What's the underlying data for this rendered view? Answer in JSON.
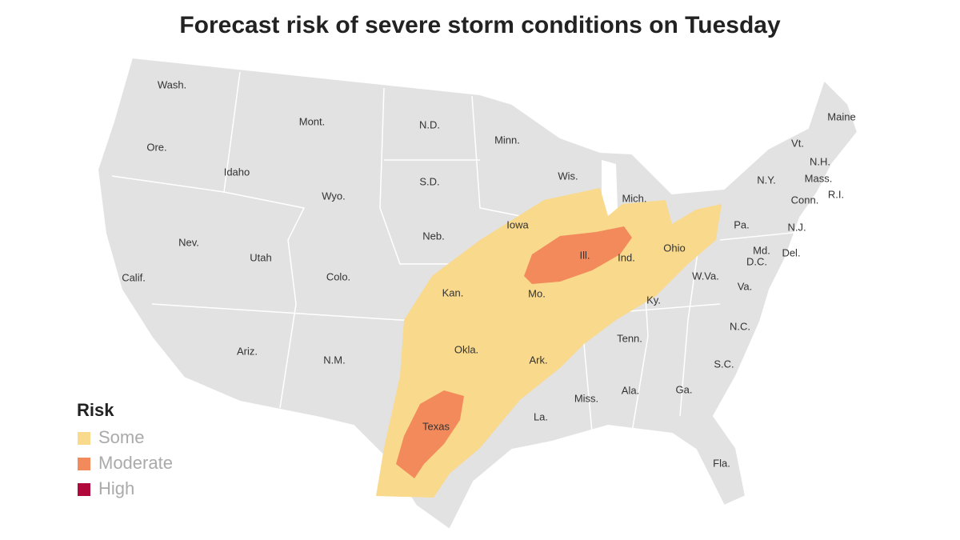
{
  "title": "Forecast risk of severe storm conditions on Tuesday",
  "legend": {
    "title": "Risk",
    "items": [
      {
        "label": "Some",
        "color": "#f9d98b"
      },
      {
        "label": "Moderate",
        "color": "#f28a5c"
      },
      {
        "label": "High",
        "color": "#b0083a"
      }
    ]
  },
  "states": [
    "Wash.",
    "Ore.",
    "Calif.",
    "Idaho",
    "Nev.",
    "Mont.",
    "Wyo.",
    "Utah",
    "Ariz.",
    "Colo.",
    "N.M.",
    "N.D.",
    "S.D.",
    "Neb.",
    "Kan.",
    "Okla.",
    "Texas",
    "Minn.",
    "Iowa",
    "Mo.",
    "Ark.",
    "La.",
    "Wis.",
    "Ill.",
    "Mich.",
    "Ind.",
    "Ohio",
    "Ky.",
    "Tenn.",
    "Miss.",
    "Ala.",
    "Ga.",
    "Fla.",
    "S.C.",
    "N.C.",
    "Va.",
    "W.Va.",
    "Pa.",
    "N.Y.",
    "Vt.",
    "N.H.",
    "Maine",
    "Mass.",
    "Conn.",
    "R.I.",
    "N.J.",
    "Del.",
    "Md.",
    "D.C."
  ]
}
